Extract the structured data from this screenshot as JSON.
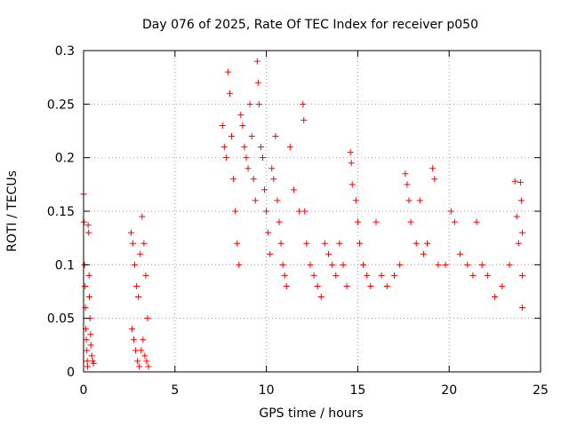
{
  "chart_data": {
    "type": "scatter",
    "title": "Day 076 of 2025, Rate Of TEC Index for receiver p050",
    "xlabel": "GPS time / hours",
    "ylabel": "ROTI / TECUs",
    "xlim": [
      0,
      25
    ],
    "ylim": [
      0,
      0.3
    ],
    "xticks": [
      0,
      5,
      10,
      15,
      20,
      25
    ],
    "xtick_labels": [
      "0",
      "5",
      "10",
      "15",
      "20",
      "25"
    ],
    "yticks": [
      0,
      0.05,
      0.1,
      0.15,
      0.2,
      0.25,
      0.3
    ],
    "ytick_labels": [
      "0",
      "0.05",
      "0.1",
      "0.15",
      "0.2",
      "0.25",
      "0.3"
    ],
    "grid": true,
    "marker": "plus",
    "color": "#ff0000",
    "series": [
      {
        "points": [
          [
            0.0,
            0.166
          ],
          [
            0.02,
            0.14
          ],
          [
            0.05,
            0.1
          ],
          [
            0.08,
            0.08
          ],
          [
            0.1,
            0.06
          ],
          [
            0.12,
            0.04
          ],
          [
            0.15,
            0.03
          ],
          [
            0.18,
            0.02
          ],
          [
            0.2,
            0.01
          ],
          [
            0.22,
            0.005
          ],
          [
            0.25,
            0.137
          ],
          [
            0.28,
            0.13
          ],
          [
            0.3,
            0.09
          ],
          [
            0.32,
            0.07
          ],
          [
            0.35,
            0.05
          ],
          [
            0.38,
            0.035
          ],
          [
            0.4,
            0.025
          ],
          [
            0.45,
            0.015
          ],
          [
            0.5,
            0.01
          ],
          [
            0.55,
            0.008
          ],
          [
            2.6,
            0.13
          ],
          [
            2.7,
            0.12
          ],
          [
            2.8,
            0.1
          ],
          [
            2.9,
            0.08
          ],
          [
            3.0,
            0.07
          ],
          [
            3.1,
            0.11
          ],
          [
            3.2,
            0.145
          ],
          [
            3.3,
            0.12
          ],
          [
            3.4,
            0.09
          ],
          [
            3.5,
            0.05
          ],
          [
            2.65,
            0.04
          ],
          [
            2.75,
            0.03
          ],
          [
            2.85,
            0.02
          ],
          [
            2.95,
            0.01
          ],
          [
            3.05,
            0.005
          ],
          [
            3.15,
            0.02
          ],
          [
            3.25,
            0.03
          ],
          [
            3.35,
            0.015
          ],
          [
            3.45,
            0.01
          ],
          [
            3.55,
            0.005
          ],
          [
            7.6,
            0.23
          ],
          [
            7.7,
            0.21
          ],
          [
            7.8,
            0.2
          ],
          [
            7.9,
            0.28
          ],
          [
            8.0,
            0.26
          ],
          [
            8.1,
            0.22
          ],
          [
            8.2,
            0.18
          ],
          [
            8.3,
            0.15
          ],
          [
            8.4,
            0.12
          ],
          [
            8.5,
            0.1
          ],
          [
            8.6,
            0.24
          ],
          [
            8.7,
            0.23
          ],
          [
            8.8,
            0.21
          ],
          [
            8.9,
            0.2
          ],
          [
            9.0,
            0.19
          ],
          [
            9.1,
            0.25
          ],
          [
            9.2,
            0.22
          ],
          [
            9.3,
            0.18
          ],
          [
            9.4,
            0.16
          ],
          [
            9.5,
            0.29
          ],
          [
            9.55,
            0.27
          ],
          [
            9.6,
            0.25
          ],
          [
            9.7,
            0.21
          ],
          [
            9.8,
            0.2
          ],
          [
            9.9,
            0.17
          ],
          [
            10.0,
            0.15
          ],
          [
            10.1,
            0.13
          ],
          [
            10.2,
            0.11
          ],
          [
            10.3,
            0.19
          ],
          [
            10.4,
            0.18
          ],
          [
            10.5,
            0.22
          ],
          [
            10.6,
            0.16
          ],
          [
            10.7,
            0.14
          ],
          [
            10.8,
            0.12
          ],
          [
            10.9,
            0.1
          ],
          [
            11.0,
            0.09
          ],
          [
            11.1,
            0.08
          ],
          [
            11.3,
            0.21
          ],
          [
            11.5,
            0.17
          ],
          [
            11.8,
            0.15
          ],
          [
            12.0,
            0.25
          ],
          [
            12.05,
            0.235
          ],
          [
            12.1,
            0.15
          ],
          [
            12.2,
            0.12
          ],
          [
            12.4,
            0.1
          ],
          [
            12.6,
            0.09
          ],
          [
            12.8,
            0.08
          ],
          [
            13.0,
            0.07
          ],
          [
            13.2,
            0.12
          ],
          [
            13.4,
            0.11
          ],
          [
            13.6,
            0.1
          ],
          [
            13.8,
            0.09
          ],
          [
            14.0,
            0.12
          ],
          [
            14.2,
            0.1
          ],
          [
            14.4,
            0.08
          ],
          [
            14.6,
            0.205
          ],
          [
            14.65,
            0.195
          ],
          [
            14.7,
            0.175
          ],
          [
            14.9,
            0.16
          ],
          [
            15.0,
            0.14
          ],
          [
            15.1,
            0.12
          ],
          [
            15.3,
            0.1
          ],
          [
            15.5,
            0.09
          ],
          [
            15.7,
            0.08
          ],
          [
            16.0,
            0.14
          ],
          [
            16.3,
            0.09
          ],
          [
            16.6,
            0.08
          ],
          [
            17.0,
            0.09
          ],
          [
            17.3,
            0.1
          ],
          [
            17.6,
            0.185
          ],
          [
            17.7,
            0.175
          ],
          [
            17.8,
            0.16
          ],
          [
            17.9,
            0.14
          ],
          [
            18.2,
            0.12
          ],
          [
            18.4,
            0.16
          ],
          [
            18.6,
            0.11
          ],
          [
            18.8,
            0.12
          ],
          [
            19.1,
            0.19
          ],
          [
            19.2,
            0.18
          ],
          [
            19.4,
            0.1
          ],
          [
            19.8,
            0.1
          ],
          [
            20.1,
            0.15
          ],
          [
            20.3,
            0.14
          ],
          [
            20.6,
            0.11
          ],
          [
            21.0,
            0.1
          ],
          [
            21.3,
            0.09
          ],
          [
            21.5,
            0.14
          ],
          [
            21.8,
            0.1
          ],
          [
            22.1,
            0.09
          ],
          [
            22.5,
            0.07
          ],
          [
            22.9,
            0.08
          ],
          [
            23.3,
            0.1
          ],
          [
            23.6,
            0.178
          ],
          [
            23.7,
            0.145
          ],
          [
            23.8,
            0.12
          ],
          [
            23.9,
            0.177
          ],
          [
            23.95,
            0.16
          ],
          [
            24.0,
            0.13
          ],
          [
            24.0,
            0.09
          ],
          [
            24.0,
            0.06
          ]
        ]
      }
    ]
  }
}
